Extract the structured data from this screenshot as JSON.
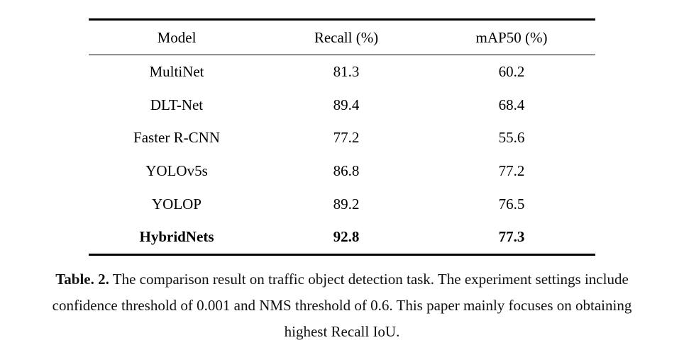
{
  "table": {
    "headers": [
      "Model",
      "Recall (%)",
      "mAP50 (%)"
    ],
    "rows": [
      [
        "MultiNet",
        "81.3",
        "60.2"
      ],
      [
        "DLT-Net",
        "89.4",
        "68.4"
      ],
      [
        "Faster R-CNN",
        "77.2",
        "55.6"
      ],
      [
        "YOLOv5s",
        "86.8",
        "77.2"
      ],
      [
        "YOLOP",
        "89.2",
        "76.5"
      ],
      [
        "HybridNets",
        "92.8",
        "77.3"
      ]
    ]
  },
  "caption": {
    "label": "Table. 2.",
    "line1": " The comparison result on traffic object detection task. The experiment settings include",
    "line2": "confidence threshold of 0.001 and NMS threshold of 0.6. This paper mainly focuses on obtaining",
    "line3": "highest Recall IoU."
  }
}
